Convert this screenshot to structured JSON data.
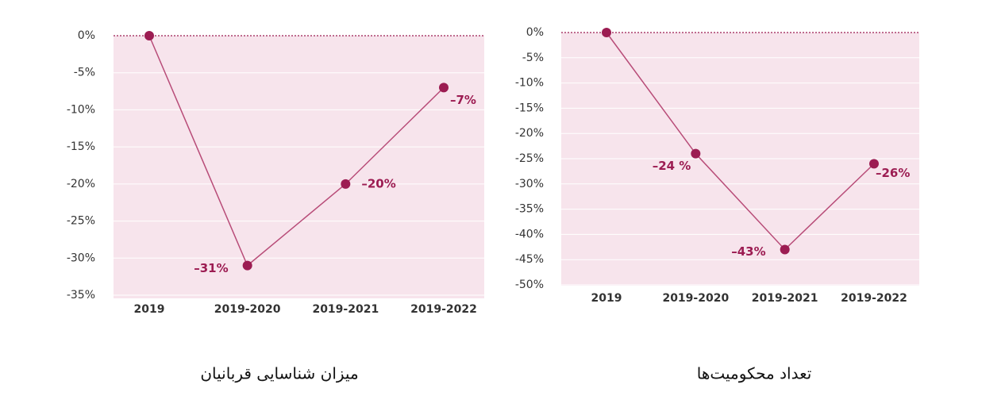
{
  "chart_data": [
    {
      "type": "line",
      "title": "میزان شناسایی قربانیان",
      "categories": [
        "2019",
        "2019-2020",
        "2019-2021",
        "2019-2022"
      ],
      "values": [
        0,
        -31,
        -20,
        -7
      ],
      "value_labels": [
        null,
        "–31%",
        "–20%",
        "–7%"
      ],
      "color": "#b84c78",
      "marker_color": "#9c1c52",
      "background": "#f7e4ec",
      "ylim": [
        -35,
        0
      ],
      "yticks": [
        {
          "value": 0,
          "label": "0%"
        },
        {
          "value": -5,
          "label": "-5%"
        },
        {
          "value": -10,
          "label": "-10%"
        },
        {
          "value": -15,
          "label": "-15%"
        },
        {
          "value": -20,
          "label": "-20%"
        },
        {
          "value": -25,
          "label": "-25%"
        },
        {
          "value": -30,
          "label": "-30%"
        },
        {
          "value": -35,
          "label": "-35%"
        }
      ],
      "grid": true
    },
    {
      "type": "line",
      "title": "تعداد محکومیت‌ها",
      "categories": [
        "2019",
        "2019-2020",
        "2019-2021",
        "2019-2022"
      ],
      "values": [
        0,
        -24,
        -43,
        -26
      ],
      "value_labels": [
        null,
        "–24 %",
        "–43%",
        "–26%"
      ],
      "color": "#b84c78",
      "marker_color": "#9c1c52",
      "background": "#f7e4ec",
      "ylim": [
        -50,
        0
      ],
      "yticks": [
        {
          "value": 0,
          "label": "0%"
        },
        {
          "value": -5,
          "label": "-5%"
        },
        {
          "value": -10,
          "label": "-10%"
        },
        {
          "value": -15,
          "label": "-15%"
        },
        {
          "value": -20,
          "label": "-20%"
        },
        {
          "value": -25,
          "label": "-25%"
        },
        {
          "value": -30,
          "label": "-30%"
        },
        {
          "value": -35,
          "label": "-35%"
        },
        {
          "value": -40,
          "label": "-40%"
        },
        {
          "value": -45,
          "label": "-45%"
        },
        {
          "value": -50,
          "label": "-50%"
        }
      ],
      "grid": true
    }
  ]
}
